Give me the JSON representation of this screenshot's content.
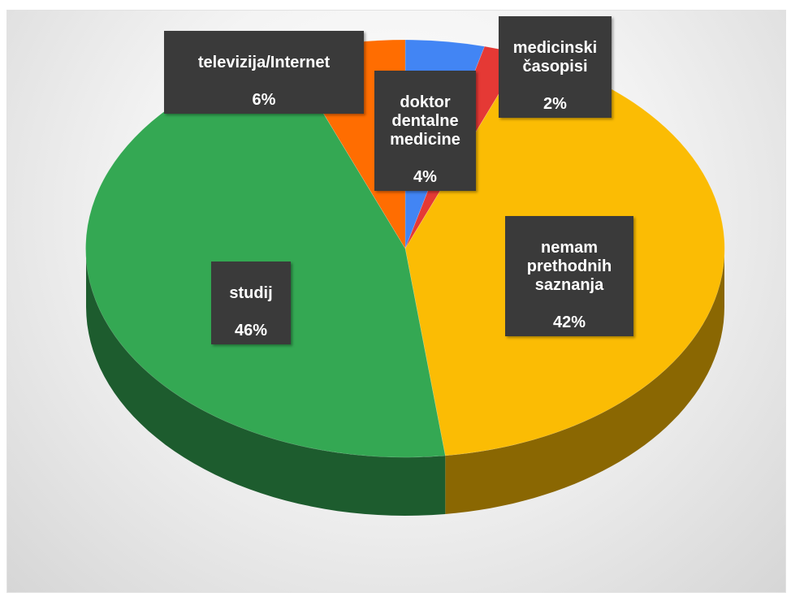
{
  "chart_data": {
    "type": "pie",
    "style": "3d",
    "title": "",
    "slices": [
      {
        "label": "doktor\ndentalne\nmedicine",
        "value": 4,
        "value_label": "4%",
        "color": "#4285f4"
      },
      {
        "label": "medicinski\nčasopisi",
        "value": 2,
        "value_label": "2%",
        "color": "#e53935"
      },
      {
        "label": "nemam\nprethodnih\nsaznanja",
        "value": 42,
        "value_label": "42%",
        "color": "#fbbc04"
      },
      {
        "label": "studij",
        "value": 46,
        "value_label": "46%",
        "color": "#34a853"
      },
      {
        "label": "televizija/Internet",
        "value": 6,
        "value_label": "6%",
        "color": "#ff6d01"
      }
    ],
    "legend": "none",
    "data_labels": "callout boxes"
  }
}
